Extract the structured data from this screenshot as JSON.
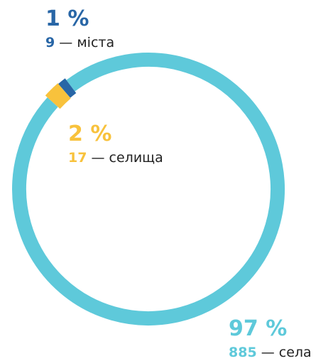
{
  "chart_data": {
    "type": "donut",
    "categories": [
      "міста",
      "селища",
      "села"
    ],
    "values": [
      1,
      2,
      97
    ],
    "value_labels": [
      "1 %",
      "2 %",
      "97 %"
    ],
    "counts": [
      9,
      17,
      885
    ],
    "separator": "—",
    "colors": [
      "#2866a6",
      "#f8c23c",
      "#5ec9da"
    ]
  }
}
